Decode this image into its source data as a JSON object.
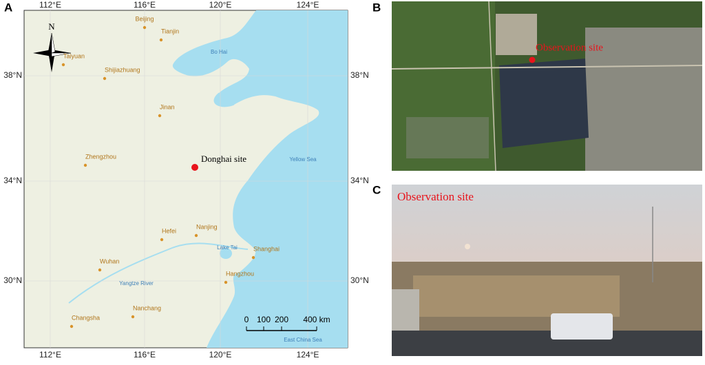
{
  "panels": [
    {
      "label": "A",
      "north": "N",
      "lon_labels": [
        "112°E",
        "116°E",
        "120°E",
        "124°E"
      ],
      "lat_labels": [
        "38°N",
        "34°N",
        "30°N"
      ],
      "places": [
        "Beijing",
        "Tianjin",
        "Bo Hai",
        "Taiyuan",
        "Shijiazhuang",
        "Jinan",
        "Zhengzhou",
        "Yellow Sea",
        "Hefei",
        "Nanjing",
        "Lake Tai",
        "Shanghai",
        "Wuhan",
        "Yangtze River",
        "Hangzhou",
        "Nanchang",
        "Changsha",
        "East China Sea"
      ],
      "site": "Donghai site",
      "scale": [
        "0",
        "100",
        "200",
        "400 km"
      ]
    },
    {
      "label": "B",
      "site": "Observation site"
    },
    {
      "label": "C",
      "site": "Observation site"
    }
  ]
}
